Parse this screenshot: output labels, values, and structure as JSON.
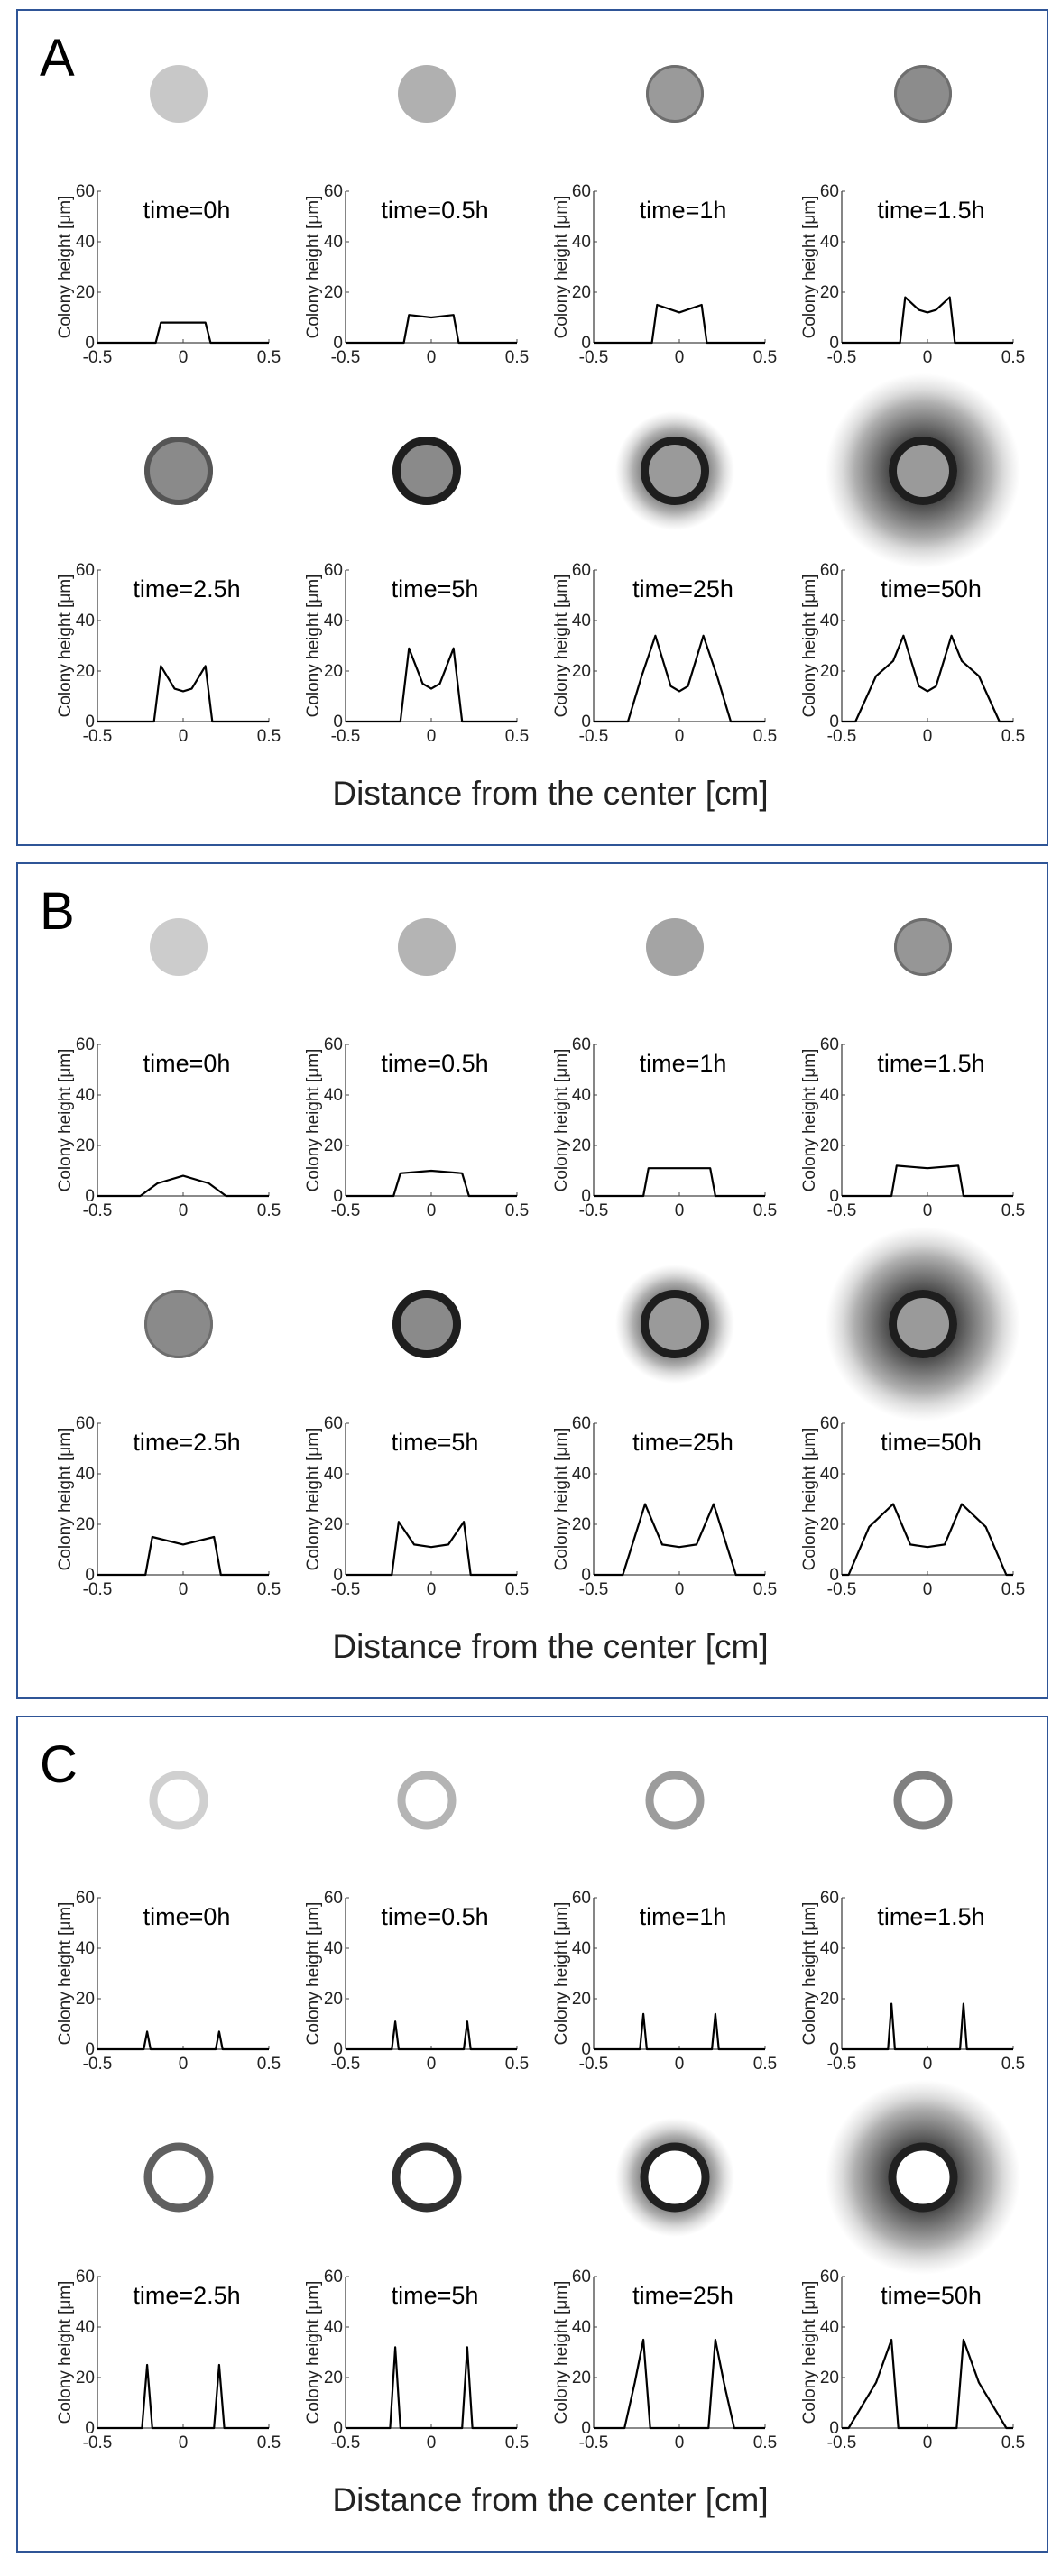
{
  "ylabel": "Colony height [μm]",
  "xlabel": "Distance from the center [cm]",
  "xticks": [
    "-0.5",
    "0",
    "0.5"
  ],
  "yticks": [
    "0",
    "20",
    "40",
    "60"
  ],
  "colors": {
    "border": "#2f5597",
    "line": "#000000",
    "axis": "#444444"
  },
  "chart_data": [
    {
      "panel_label": "A",
      "type": "line",
      "xlabel": "Distance from the center [cm]",
      "ylabel": "Colony height [μm]",
      "xlim": [
        -0.5,
        0.5
      ],
      "ylim": [
        0,
        60
      ],
      "charts": [
        {
          "title": "time=0h",
          "x": [
            -0.5,
            -0.16,
            -0.13,
            0.13,
            0.16,
            0.5
          ],
          "y": [
            0,
            0,
            8,
            8,
            0,
            0
          ],
          "image": {
            "kind": "disc",
            "size": 0.3,
            "gray": "#c8c8c8",
            "ring": "none",
            "halo": "none"
          }
        },
        {
          "title": "time=0.5h",
          "x": [
            -0.5,
            -0.16,
            -0.13,
            0,
            0.13,
            0.16,
            0.5
          ],
          "y": [
            0,
            0,
            11,
            10,
            11,
            0,
            0
          ],
          "image": {
            "kind": "disc",
            "size": 0.28,
            "gray": "#b0b0b0",
            "ring": "none",
            "halo": "none"
          }
        },
        {
          "title": "time=1h",
          "x": [
            -0.5,
            -0.16,
            -0.13,
            0,
            0.13,
            0.16,
            0.5
          ],
          "y": [
            0,
            0,
            15,
            12,
            15,
            0,
            0
          ],
          "image": {
            "kind": "disc",
            "size": 0.3,
            "gray": "#9a9a9a",
            "ring": "faint",
            "halo": "none"
          }
        },
        {
          "title": "time=1.5h",
          "x": [
            -0.5,
            -0.16,
            -0.13,
            -0.05,
            0,
            0.05,
            0.13,
            0.16,
            0.5
          ],
          "y": [
            0,
            0,
            18,
            13,
            12,
            13,
            18,
            0,
            0
          ],
          "image": {
            "kind": "disc",
            "size": 0.3,
            "gray": "#8c8c8c",
            "ring": "faint",
            "halo": "none"
          }
        },
        {
          "title": "time=2.5h",
          "x": [
            -0.5,
            -0.17,
            -0.13,
            -0.05,
            0,
            0.05,
            0.13,
            0.17,
            0.5
          ],
          "y": [
            0,
            0,
            22,
            13,
            12,
            13,
            22,
            0,
            0
          ],
          "image": {
            "kind": "disc",
            "size": 0.34,
            "gray": "#8a8a8a",
            "ring": "medium",
            "halo": "none"
          }
        },
        {
          "title": "time=5h",
          "x": [
            -0.5,
            -0.18,
            -0.13,
            -0.05,
            0,
            0.05,
            0.13,
            0.18,
            0.5
          ],
          "y": [
            0,
            0,
            29,
            15,
            13,
            15,
            29,
            0,
            0
          ],
          "image": {
            "kind": "disc",
            "size": 0.34,
            "gray": "#8a8a8a",
            "ring": "dark",
            "halo": "none"
          }
        },
        {
          "title": "time=25h",
          "x": [
            -0.5,
            -0.3,
            -0.22,
            -0.14,
            -0.05,
            0,
            0.05,
            0.14,
            0.22,
            0.3,
            0.5
          ],
          "y": [
            0,
            0,
            18,
            34,
            14,
            12,
            14,
            34,
            18,
            0,
            0
          ],
          "image": {
            "kind": "disc",
            "size": 0.34,
            "gray": "#9a9a9a",
            "ring": "dark",
            "halo": "medium"
          }
        },
        {
          "title": "time=50h",
          "x": [
            -0.5,
            -0.42,
            -0.3,
            -0.2,
            -0.14,
            -0.05,
            0,
            0.05,
            0.14,
            0.2,
            0.3,
            0.42,
            0.5
          ],
          "y": [
            0,
            0,
            18,
            24,
            34,
            14,
            12,
            14,
            34,
            24,
            18,
            0,
            0
          ],
          "image": {
            "kind": "disc",
            "size": 0.34,
            "gray": "#9a9a9a",
            "ring": "dark",
            "halo": "large"
          }
        }
      ]
    },
    {
      "panel_label": "B",
      "type": "line",
      "xlabel": "Distance from the center [cm]",
      "ylabel": "Colony height [μm]",
      "xlim": [
        -0.5,
        0.5
      ],
      "ylim": [
        0,
        60
      ],
      "charts": [
        {
          "title": "time=0h",
          "x": [
            -0.5,
            -0.25,
            -0.15,
            0,
            0.15,
            0.25,
            0.5
          ],
          "y": [
            0,
            0,
            5,
            8,
            5,
            0,
            0
          ],
          "image": {
            "kind": "disc",
            "size": 0.34,
            "gray": "#cccccc",
            "ring": "none",
            "halo": "none"
          }
        },
        {
          "title": "time=0.5h",
          "x": [
            -0.5,
            -0.22,
            -0.18,
            0,
            0.18,
            0.22,
            0.5
          ],
          "y": [
            0,
            0,
            9,
            10,
            9,
            0,
            0
          ],
          "image": {
            "kind": "disc",
            "size": 0.34,
            "gray": "#b4b4b4",
            "ring": "none",
            "halo": "none"
          }
        },
        {
          "title": "time=1h",
          "x": [
            -0.5,
            -0.21,
            -0.18,
            0,
            0.18,
            0.21,
            0.5
          ],
          "y": [
            0,
            0,
            11,
            11,
            11,
            0,
            0
          ],
          "image": {
            "kind": "disc",
            "size": 0.34,
            "gray": "#a4a4a4",
            "ring": "none",
            "halo": "none"
          }
        },
        {
          "title": "time=1.5h",
          "x": [
            -0.5,
            -0.21,
            -0.18,
            0,
            0.18,
            0.21,
            0.5
          ],
          "y": [
            0,
            0,
            12,
            11,
            12,
            0,
            0
          ],
          "image": {
            "kind": "disc",
            "size": 0.34,
            "gray": "#969696",
            "ring": "faint",
            "halo": "none"
          }
        },
        {
          "title": "time=2.5h",
          "x": [
            -0.5,
            -0.22,
            -0.18,
            0,
            0.18,
            0.22,
            0.5
          ],
          "y": [
            0,
            0,
            15,
            12,
            15,
            0,
            0
          ],
          "image": {
            "kind": "disc",
            "size": 0.34,
            "gray": "#8a8a8a",
            "ring": "faint",
            "halo": "none"
          }
        },
        {
          "title": "time=5h",
          "x": [
            -0.5,
            -0.23,
            -0.19,
            -0.1,
            0,
            0.1,
            0.19,
            0.23,
            0.5
          ],
          "y": [
            0,
            0,
            21,
            12,
            11,
            12,
            21,
            0,
            0
          ],
          "image": {
            "kind": "disc",
            "size": 0.34,
            "gray": "#8a8a8a",
            "ring": "dark",
            "halo": "none"
          }
        },
        {
          "title": "time=25h",
          "x": [
            -0.5,
            -0.33,
            -0.2,
            -0.1,
            0,
            0.1,
            0.2,
            0.33,
            0.5
          ],
          "y": [
            0,
            0,
            28,
            12,
            11,
            12,
            28,
            0,
            0
          ],
          "image": {
            "kind": "disc",
            "size": 0.34,
            "gray": "#9a9a9a",
            "ring": "dark",
            "halo": "medium"
          }
        },
        {
          "title": "time=50h",
          "x": [
            -0.5,
            -0.46,
            -0.34,
            -0.2,
            -0.1,
            0,
            0.1,
            0.2,
            0.34,
            0.46,
            0.5
          ],
          "y": [
            0,
            0,
            19,
            28,
            12,
            11,
            12,
            28,
            19,
            0,
            0
          ],
          "image": {
            "kind": "disc",
            "size": 0.34,
            "gray": "#9a9a9a",
            "ring": "dark",
            "halo": "large"
          }
        }
      ]
    },
    {
      "panel_label": "C",
      "type": "line",
      "xlabel": "Distance from the center [cm]",
      "ylabel": "Colony height [μm]",
      "xlim": [
        -0.5,
        0.5
      ],
      "ylim": [
        0,
        60
      ],
      "charts": [
        {
          "title": "time=0h",
          "x": [
            -0.5,
            -0.23,
            -0.21,
            -0.19,
            0.19,
            0.21,
            0.23,
            0.5
          ],
          "y": [
            0,
            0,
            7,
            0,
            0,
            7,
            0,
            0
          ],
          "image": {
            "kind": "ring",
            "size": 0.36,
            "gray": "#d0d0d0",
            "ring": "none",
            "halo": "none"
          }
        },
        {
          "title": "time=0.5h",
          "x": [
            -0.5,
            -0.23,
            -0.21,
            -0.19,
            0.19,
            0.21,
            0.23,
            0.5
          ],
          "y": [
            0,
            0,
            11,
            0,
            0,
            11,
            0,
            0
          ],
          "image": {
            "kind": "ring",
            "size": 0.36,
            "gray": "#b4b4b4",
            "ring": "none",
            "halo": "none"
          }
        },
        {
          "title": "time=1h",
          "x": [
            -0.5,
            -0.23,
            -0.21,
            -0.19,
            0.19,
            0.21,
            0.23,
            0.5
          ],
          "y": [
            0,
            0,
            14,
            0,
            0,
            14,
            0,
            0
          ],
          "image": {
            "kind": "ring",
            "size": 0.36,
            "gray": "#9c9c9c",
            "ring": "none",
            "halo": "none"
          }
        },
        {
          "title": "time=1.5h",
          "x": [
            -0.5,
            -0.23,
            -0.21,
            -0.19,
            0.19,
            0.21,
            0.23,
            0.5
          ],
          "y": [
            0,
            0,
            18,
            0,
            0,
            18,
            0,
            0
          ],
          "image": {
            "kind": "ring",
            "size": 0.36,
            "gray": "#808080",
            "ring": "none",
            "halo": "none"
          }
        },
        {
          "title": "time=2.5h",
          "x": [
            -0.5,
            -0.24,
            -0.21,
            -0.18,
            0.18,
            0.21,
            0.24,
            0.5
          ],
          "y": [
            0,
            0,
            25,
            0,
            0,
            25,
            0,
            0
          ],
          "image": {
            "kind": "ring",
            "size": 0.38,
            "gray": "#606060",
            "ring": "none",
            "halo": "none"
          }
        },
        {
          "title": "time=5h",
          "x": [
            -0.5,
            -0.24,
            -0.21,
            -0.18,
            0.18,
            0.21,
            0.24,
            0.5
          ],
          "y": [
            0,
            0,
            32,
            0,
            0,
            32,
            0,
            0
          ],
          "image": {
            "kind": "ring",
            "size": 0.38,
            "gray": "#303030",
            "ring": "none",
            "halo": "none"
          }
        },
        {
          "title": "time=25h",
          "x": [
            -0.5,
            -0.32,
            -0.26,
            -0.21,
            -0.17,
            0.17,
            0.21,
            0.26,
            0.32,
            0.5
          ],
          "y": [
            0,
            0,
            18,
            35,
            0,
            0,
            35,
            18,
            0,
            0
          ],
          "image": {
            "kind": "ring",
            "size": 0.38,
            "gray": "#202020",
            "ring": "none",
            "halo": "medium"
          }
        },
        {
          "title": "time=50h",
          "x": [
            -0.5,
            -0.46,
            -0.3,
            -0.21,
            -0.17,
            0.17,
            0.21,
            0.3,
            0.46,
            0.5
          ],
          "y": [
            0,
            0,
            18,
            35,
            0,
            0,
            35,
            18,
            0,
            0
          ],
          "image": {
            "kind": "ring",
            "size": 0.38,
            "gray": "#202020",
            "ring": "none",
            "halo": "large"
          }
        }
      ]
    }
  ]
}
